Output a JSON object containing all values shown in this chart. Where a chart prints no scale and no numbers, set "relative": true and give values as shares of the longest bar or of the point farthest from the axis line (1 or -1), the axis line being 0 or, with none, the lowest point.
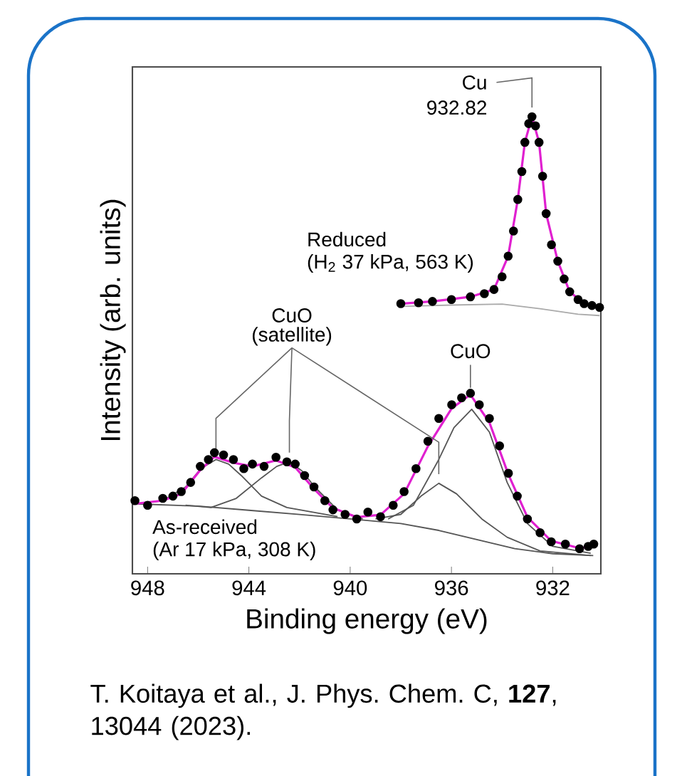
{
  "chart_data": {
    "type": "line",
    "xlabel": "Binding energy (eV)",
    "ylabel": "Intensity (arb. units)",
    "relative": true,
    "xlim": [
      948.6,
      930.1
    ],
    "xticks": [
      948,
      944,
      940,
      936,
      932
    ],
    "tick_labels": "x",
    "series": [
      {
        "color": "#555555",
        "x": [
          948.5,
          946,
          944,
          942,
          940,
          938,
          936.5,
          935,
          933.5,
          932,
          930.4
        ],
        "values": [
          0.153,
          0.148,
          0.139,
          0.13,
          0.12,
          0.11,
          0.095,
          0.075,
          0.055,
          0.044,
          0.04
        ]
      },
      {
        "color": "#555555",
        "x": [
          948.5,
          947.4,
          946.5,
          945.9,
          945.3,
          944.8,
          944.3,
          943.5,
          942.5,
          941.5,
          940.5
        ],
        "values": [
          0.153,
          0.16,
          0.19,
          0.23,
          0.25,
          0.24,
          0.215,
          0.17,
          0.145,
          0.135,
          0.125
        ]
      },
      {
        "color": "#555555",
        "x": [
          946.5,
          945.5,
          944.5,
          943.5,
          942.9,
          942.4,
          941.9,
          941.4,
          940.5,
          939.5
        ],
        "values": [
          0.15,
          0.145,
          0.165,
          0.21,
          0.235,
          0.245,
          0.225,
          0.19,
          0.14,
          0.12
        ]
      },
      {
        "color": "#555555",
        "x": [
          939,
          938,
          937.2,
          936.5,
          935.8,
          934.8,
          933.8,
          932.5,
          930.5
        ],
        "values": [
          0.12,
          0.13,
          0.17,
          0.198,
          0.175,
          0.12,
          0.08,
          0.05,
          0.04
        ]
      },
      {
        "color": "#555555",
        "x": [
          938.5,
          937.5,
          936.5,
          935.9,
          935.2,
          934.5,
          933.8,
          933,
          932,
          930.5
        ],
        "values": [
          0.12,
          0.15,
          0.25,
          0.32,
          0.36,
          0.31,
          0.2,
          0.11,
          0.06,
          0.045
        ]
      },
      {
        "color": "#aaaaaa",
        "x": [
          938,
          936,
          934,
          932.5,
          931,
          930.15
        ],
        "values": [
          0.585,
          0.588,
          0.59,
          0.58,
          0.568,
          0.565
        ]
      },
      {
        "type": "scatter",
        "marker": "circle",
        "color": "#000000",
        "x": [
          948.5,
          948,
          947.4,
          947,
          946.67,
          946.3,
          945.92,
          945.6,
          945.36,
          945,
          944.61,
          944.2,
          943.86,
          943.4,
          942.93,
          942.5,
          942.17,
          941.8,
          941.43,
          941,
          940.68,
          940.2,
          939.74,
          939.3,
          938.8,
          938.3,
          937.87,
          937.4,
          936.93,
          936.5,
          935.99,
          935.6,
          935.25,
          934.9,
          934.5,
          934.1,
          933.75,
          933.4,
          933,
          932.5,
          932.06,
          931.5,
          930.94,
          930.6,
          930.38
        ],
        "values": [
          0.16,
          0.15,
          0.165,
          0.17,
          0.18,
          0.2,
          0.235,
          0.25,
          0.265,
          0.26,
          0.25,
          0.23,
          0.24,
          0.235,
          0.255,
          0.245,
          0.24,
          0.215,
          0.19,
          0.16,
          0.14,
          0.13,
          0.12,
          0.135,
          0.125,
          0.15,
          0.18,
          0.23,
          0.29,
          0.34,
          0.37,
          0.385,
          0.395,
          0.37,
          0.34,
          0.28,
          0.22,
          0.17,
          0.12,
          0.09,
          0.07,
          0.065,
          0.055,
          0.06,
          0.065
        ]
      },
      {
        "type": "scatter",
        "marker": "circle",
        "color": "#000000",
        "x": [
          938,
          937.3,
          936.75,
          936,
          935.25,
          934.7,
          934.32,
          934,
          933.76,
          933.55,
          933.38,
          933.22,
          933.1,
          932.95,
          932.82,
          932.68,
          932.54,
          932.4,
          932.26,
          932.05,
          931.8,
          931.55,
          931.33,
          931,
          930.76,
          930.45,
          930.15
        ],
        "values": [
          0.591,
          0.593,
          0.596,
          0.6,
          0.606,
          0.613,
          0.622,
          0.65,
          0.695,
          0.75,
          0.819,
          0.88,
          0.944,
          0.985,
          1.0,
          0.98,
          0.944,
          0.87,
          0.788,
          0.72,
          0.684,
          0.645,
          0.617,
          0.6,
          0.591,
          0.587,
          0.583
        ]
      },
      {
        "color": "#e020d0",
        "x": [
          948.55,
          947.42,
          946.67,
          945.92,
          945.36,
          944.61,
          943.86,
          942.93,
          942.17,
          941.43,
          940.68,
          939.74,
          938.8,
          937.87,
          936.93,
          935.99,
          935.25,
          934.5,
          933.75,
          933,
          932.06,
          930.94,
          930.38
        ],
        "values": [
          0.153,
          0.16,
          0.175,
          0.227,
          0.256,
          0.243,
          0.235,
          0.248,
          0.233,
          0.186,
          0.144,
          0.124,
          0.129,
          0.175,
          0.279,
          0.362,
          0.392,
          0.331,
          0.217,
          0.124,
          0.072,
          0.056,
          0.061
        ]
      },
      {
        "color": "#e020d0",
        "x": [
          938,
          936.75,
          935.25,
          934.32,
          933.76,
          933.38,
          933.1,
          932.82,
          932.54,
          932.26,
          931.8,
          931.33,
          930.76,
          930.15
        ],
        "values": [
          0.591,
          0.596,
          0.606,
          0.622,
          0.695,
          0.819,
          0.944,
          1.0,
          0.944,
          0.788,
          0.684,
          0.617,
          0.591,
          0.583
        ]
      }
    ],
    "annotations": [
      "Cu",
      "932.82",
      "Reduced",
      "(H$_{2}$ 37 kPa, 563 K)",
      "CuO",
      "CuO",
      "(satellite)",
      "As-received",
      "(Ar 17 kPa, 308 K)",
      "T. Koitaya et al., J. Phys. Chem. C, **127**, 13044 (2023)."
    ]
  }
}
